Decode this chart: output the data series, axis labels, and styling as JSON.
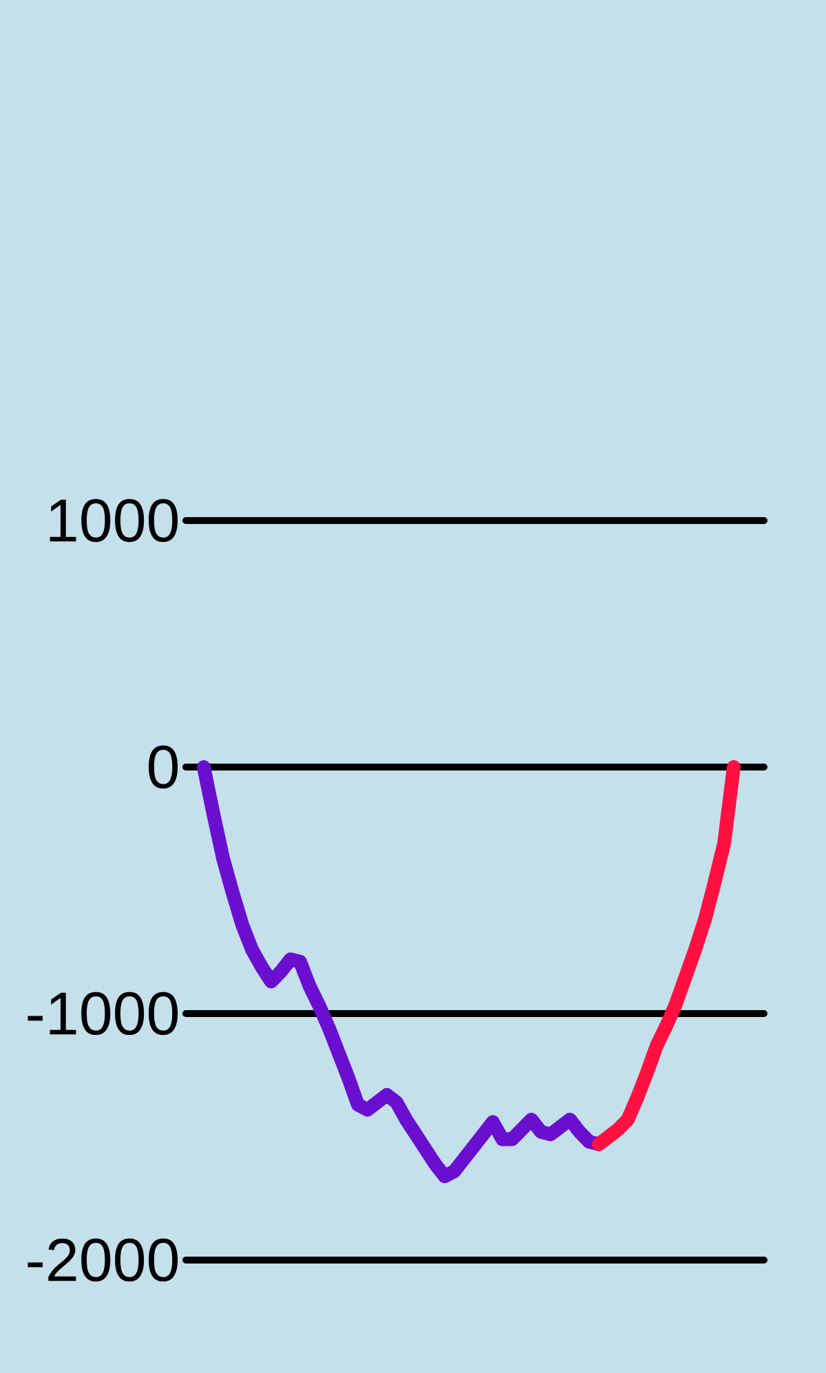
{
  "chart_data": {
    "type": "line",
    "categories": [
      null,
      null,
      null,
      null,
      null,
      null,
      null,
      null,
      null,
      null,
      null,
      null,
      null,
      null,
      null,
      null,
      null,
      null,
      null,
      null,
      null,
      null,
      null,
      null,
      null,
      null,
      null,
      null,
      null,
      null,
      null,
      null,
      null,
      null,
      null,
      null,
      null,
      null,
      null,
      null,
      null,
      null,
      null,
      null,
      null,
      null,
      null,
      null,
      null,
      null,
      null,
      null,
      null,
      null,
      null,
      null
    ],
    "series": [
      {
        "color": "#6a0fd0",
        "values": [
          0,
          -190,
          -370,
          -510,
          -640,
          -740,
          -810,
          -870,
          -830,
          -780,
          -790,
          -890,
          -970,
          -1060,
          -1160,
          -1260,
          -1370,
          -1390,
          -1360,
          -1330,
          -1360,
          -1430,
          -1490,
          -1550,
          -1610,
          -1660,
          -1640,
          -1590,
          -1540,
          -1490,
          -1440,
          -1510,
          -1510,
          -1470,
          -1430,
          -1480,
          -1490,
          -1460,
          -1430,
          -1480,
          -1520,
          -1530,
          null,
          null,
          null,
          null,
          null,
          null,
          null,
          null,
          null,
          null,
          null,
          null,
          null,
          null
        ]
      },
      {
        "color": "#ff1040",
        "values": [
          null,
          null,
          null,
          null,
          null,
          null,
          null,
          null,
          null,
          null,
          null,
          null,
          null,
          null,
          null,
          null,
          null,
          null,
          null,
          null,
          null,
          null,
          null,
          null,
          null,
          null,
          null,
          null,
          null,
          null,
          null,
          null,
          null,
          null,
          null,
          null,
          null,
          null,
          null,
          null,
          null,
          -1530,
          -1500,
          -1470,
          -1430,
          -1340,
          -1240,
          -1130,
          -1050,
          -960,
          -850,
          -740,
          -620,
          -470,
          -310,
          0
        ]
      }
    ],
    "ylim": [
      -2000,
      1000
    ],
    "yticks": [
      -2000,
      -1000,
      0,
      1000
    ],
    "grid": "y"
  }
}
